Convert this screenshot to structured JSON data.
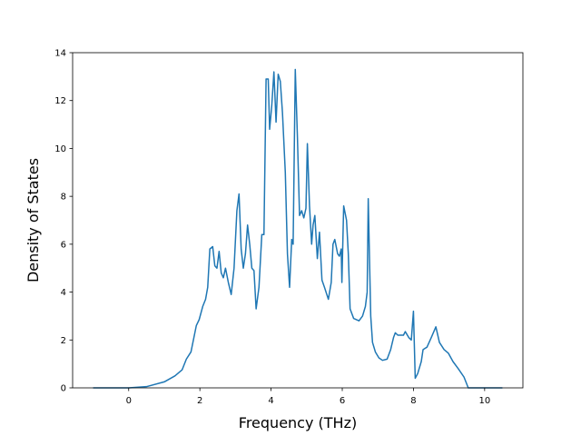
{
  "chart_data": {
    "type": "line",
    "xlabel": "Frequency (THz)",
    "ylabel": "Density of States",
    "xlim": [
      -1.575,
      11.075
    ],
    "ylim": [
      0,
      14
    ],
    "xticks": [
      0,
      2,
      4,
      6,
      8,
      10
    ],
    "yticks": [
      0,
      2,
      4,
      6,
      8,
      10,
      12,
      14
    ],
    "grid": false,
    "series": [
      {
        "color": "#1f77b4",
        "x": [
          -1,
          0,
          0.5,
          1.0,
          1.3,
          1.5,
          1.62,
          1.75,
          1.9,
          1.98,
          2.08,
          2.16,
          2.22,
          2.28,
          2.36,
          2.42,
          2.48,
          2.54,
          2.6,
          2.66,
          2.72,
          2.8,
          2.88,
          2.96,
          3.04,
          3.1,
          3.16,
          3.22,
          3.28,
          3.34,
          3.4,
          3.46,
          3.52,
          3.58,
          3.66,
          3.74,
          3.8,
          3.86,
          3.92,
          3.96,
          4.02,
          4.08,
          4.14,
          4.2,
          4.26,
          4.32,
          4.4,
          4.46,
          4.52,
          4.58,
          4.62,
          4.68,
          4.74,
          4.8,
          4.86,
          4.92,
          4.98,
          5.02,
          5.08,
          5.14,
          5.18,
          5.23,
          5.3,
          5.36,
          5.43,
          5.5,
          5.61,
          5.69,
          5.74,
          5.79,
          5.87,
          5.92,
          5.97,
          5.99,
          6.04,
          6.12,
          6.17,
          6.22,
          6.32,
          6.47,
          6.57,
          6.65,
          6.7,
          6.73,
          6.8,
          6.85,
          6.93,
          7.03,
          7.13,
          7.26,
          7.36,
          7.44,
          7.49,
          7.56,
          7.72,
          7.77,
          7.87,
          7.94,
          8.0,
          8.05,
          8.12,
          8.22,
          8.27,
          8.38,
          8.5,
          8.63,
          8.73,
          8.86,
          8.98,
          9.11,
          9.26,
          9.42,
          9.54,
          10.5
        ],
        "values": [
          0,
          0,
          0.05,
          0.25,
          0.5,
          0.75,
          1.2,
          1.5,
          2.6,
          2.85,
          3.4,
          3.7,
          4.2,
          5.8,
          5.9,
          5.1,
          5.0,
          5.7,
          4.8,
          4.6,
          5.0,
          4.4,
          3.9,
          5.0,
          7.4,
          8.1,
          5.8,
          5.0,
          5.6,
          6.8,
          6.0,
          5.0,
          4.9,
          3.3,
          4.2,
          6.4,
          6.4,
          12.9,
          12.9,
          10.8,
          11.8,
          13.2,
          11.1,
          13.1,
          12.8,
          11.5,
          9.0,
          5.6,
          4.2,
          6.2,
          6.0,
          13.3,
          10.5,
          7.2,
          7.4,
          7.1,
          7.5,
          10.2,
          7.6,
          6.0,
          6.8,
          7.2,
          5.4,
          6.5,
          4.5,
          4.2,
          3.7,
          4.4,
          6.0,
          6.2,
          5.6,
          5.5,
          5.8,
          4.4,
          7.6,
          7.0,
          5.6,
          3.3,
          2.9,
          2.8,
          3.0,
          3.4,
          4.0,
          7.9,
          3.0,
          1.9,
          1.5,
          1.25,
          1.15,
          1.2,
          1.6,
          2.1,
          2.3,
          2.2,
          2.2,
          2.35,
          2.1,
          2.0,
          3.2,
          0.4,
          0.6,
          1.1,
          1.6,
          1.7,
          2.1,
          2.55,
          1.9,
          1.6,
          1.45,
          1.1,
          0.8,
          0.45,
          0,
          0
        ]
      }
    ]
  }
}
